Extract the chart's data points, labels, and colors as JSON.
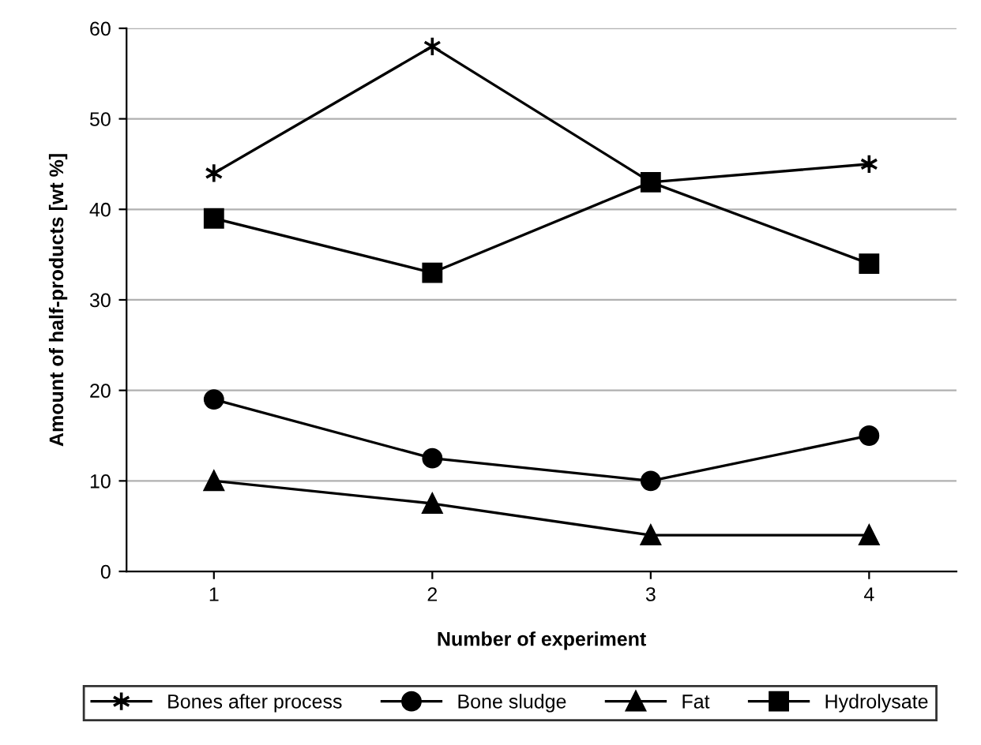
{
  "chart_data": {
    "type": "line",
    "xlabel": "Number of experiment",
    "ylabel": "Amount of half-products [wt %]",
    "categories": [
      "1",
      "2",
      "3",
      "4"
    ],
    "ylim": [
      0,
      60
    ],
    "yticks": [
      0,
      10,
      20,
      30,
      40,
      50,
      60
    ],
    "grid": "y",
    "legend": "bottom",
    "series": [
      {
        "name": "Bones after process",
        "color": "#000000",
        "marker": "cross",
        "values": [
          44,
          58,
          43,
          45
        ]
      },
      {
        "name": "Bone sludge",
        "color": "#000000",
        "marker": "circle",
        "values": [
          19,
          12.5,
          10,
          15
        ]
      },
      {
        "name": "Fat",
        "color": "#000000",
        "marker": "triangle",
        "values": [
          10,
          7.5,
          4,
          4
        ]
      },
      {
        "name": "Hydrolysate",
        "color": "#000000",
        "marker": "square",
        "values": [
          39,
          33,
          43,
          34
        ]
      }
    ]
  }
}
